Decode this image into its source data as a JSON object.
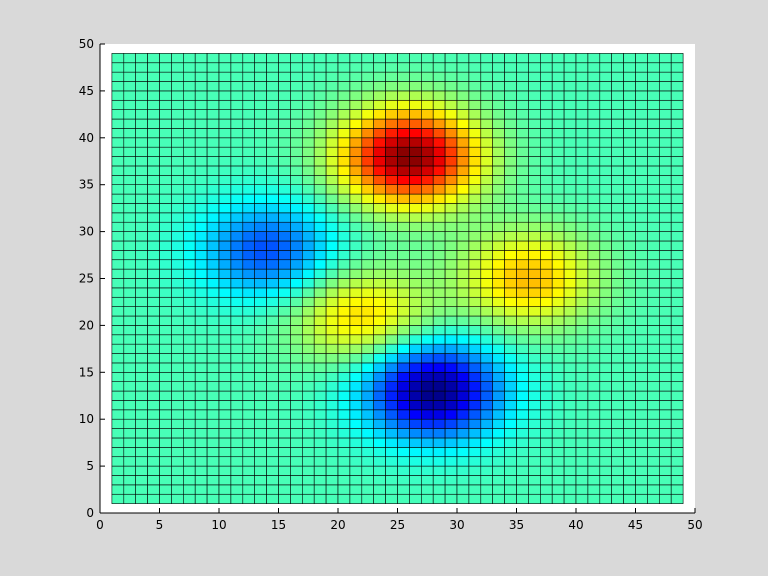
{
  "figure": {
    "background": "#d9d9d9",
    "axes_background": "#ffffff"
  },
  "chart_data": {
    "type": "heatmap",
    "style": "pcolor surface with black cell edges, jet colormap",
    "colormap": "jet",
    "title": "",
    "xlabel": "",
    "ylabel": "",
    "xlim": [
      0,
      50
    ],
    "ylim": [
      0,
      50
    ],
    "xticks": [
      0,
      5,
      10,
      15,
      20,
      25,
      30,
      35,
      40,
      45,
      50
    ],
    "yticks": [
      0,
      5,
      10,
      15,
      20,
      25,
      30,
      35,
      40,
      45,
      50
    ],
    "grid": {
      "x_start": 1,
      "x_end": 49,
      "y_start": 1,
      "y_end": 49,
      "step": 1
    },
    "color_range": [
      -6.5,
      8.1
    ],
    "baseline_value": 0,
    "features": [
      {
        "kind": "peak",
        "x": 26,
        "y": 38,
        "value": 8.1
      },
      {
        "kind": "peak",
        "x": 36,
        "y": 25,
        "value": 3.6
      },
      {
        "kind": "peak",
        "x": 22,
        "y": 21,
        "value": 3.2
      },
      {
        "kind": "trough",
        "x": 14,
        "y": 28,
        "value": -3.6
      },
      {
        "kind": "trough",
        "x": 28,
        "y": 13,
        "value": -6.5
      }
    ]
  }
}
